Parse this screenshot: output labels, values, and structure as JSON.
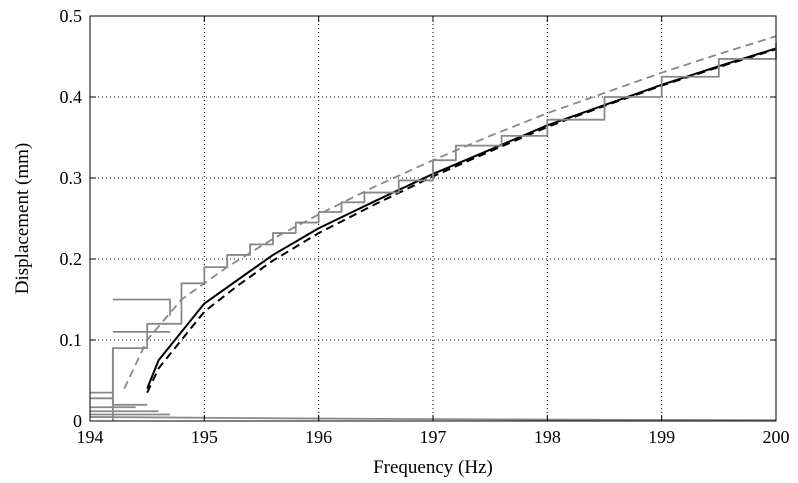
{
  "chart_data": {
    "type": "line",
    "title": "",
    "xlabel": "Frequency (Hz)",
    "ylabel": "Displacement (mm)",
    "xlim": [
      194,
      200
    ],
    "ylim": [
      0,
      0.5
    ],
    "x_ticks": [
      194,
      195,
      196,
      197,
      198,
      199,
      200
    ],
    "y_ticks": [
      0,
      0.1,
      0.2,
      0.3,
      0.4,
      0.5
    ],
    "x_tick_labels": [
      "194",
      "195",
      "196",
      "197",
      "198",
      "199",
      "200"
    ],
    "y_tick_labels": [
      "0",
      "0.1",
      "0.2",
      "0.3",
      "0.4",
      "0.5"
    ],
    "grid": true,
    "legend": false,
    "series": [
      {
        "style": "solid",
        "color": "#000000",
        "points": [
          [
            194.5,
            0.04
          ],
          [
            194.6,
            0.075
          ],
          [
            194.8,
            0.11
          ],
          [
            195.0,
            0.145
          ],
          [
            195.3,
            0.175
          ],
          [
            195.6,
            0.205
          ],
          [
            196.0,
            0.238
          ],
          [
            196.5,
            0.272
          ],
          [
            197.0,
            0.305
          ],
          [
            197.5,
            0.335
          ],
          [
            198.0,
            0.365
          ],
          [
            198.5,
            0.39
          ],
          [
            199.0,
            0.415
          ],
          [
            199.5,
            0.438
          ],
          [
            200.0,
            0.46
          ]
        ]
      },
      {
        "style": "dashed",
        "color": "#000000",
        "points": [
          [
            194.5,
            0.035
          ],
          [
            194.6,
            0.065
          ],
          [
            194.8,
            0.1
          ],
          [
            195.0,
            0.135
          ],
          [
            195.3,
            0.168
          ],
          [
            195.6,
            0.198
          ],
          [
            196.0,
            0.232
          ],
          [
            196.5,
            0.268
          ],
          [
            197.0,
            0.302
          ],
          [
            197.5,
            0.333
          ],
          [
            198.0,
            0.363
          ],
          [
            198.5,
            0.389
          ],
          [
            199.0,
            0.414
          ],
          [
            199.5,
            0.437
          ],
          [
            200.0,
            0.459
          ]
        ]
      },
      {
        "style": "dashed",
        "color": "#888888",
        "points": [
          [
            194.3,
            0.04
          ],
          [
            194.5,
            0.1
          ],
          [
            194.8,
            0.15
          ],
          [
            195.2,
            0.19
          ],
          [
            195.6,
            0.225
          ],
          [
            196.0,
            0.255
          ],
          [
            196.5,
            0.29
          ],
          [
            197.0,
            0.322
          ],
          [
            197.5,
            0.352
          ],
          [
            198.0,
            0.38
          ],
          [
            198.5,
            0.405
          ],
          [
            199.0,
            0.43
          ],
          [
            199.5,
            0.453
          ],
          [
            200.0,
            0.475
          ]
        ]
      },
      {
        "style": "steps",
        "color": "#888888",
        "points": [
          [
            194.2,
            0.0
          ],
          [
            194.2,
            0.09
          ],
          [
            194.5,
            0.09
          ],
          [
            194.5,
            0.12
          ],
          [
            194.8,
            0.12
          ],
          [
            194.8,
            0.17
          ],
          [
            195.0,
            0.17
          ],
          [
            195.0,
            0.19
          ],
          [
            195.2,
            0.19
          ],
          [
            195.2,
            0.205
          ],
          [
            195.4,
            0.205
          ],
          [
            195.4,
            0.218
          ],
          [
            195.6,
            0.218
          ],
          [
            195.6,
            0.232
          ],
          [
            195.8,
            0.232
          ],
          [
            195.8,
            0.245
          ],
          [
            196.0,
            0.245
          ],
          [
            196.0,
            0.258
          ],
          [
            196.2,
            0.258
          ],
          [
            196.2,
            0.27
          ],
          [
            196.4,
            0.27
          ],
          [
            196.4,
            0.282
          ],
          [
            196.7,
            0.282
          ],
          [
            196.7,
            0.297
          ],
          [
            197.0,
            0.297
          ],
          [
            197.0,
            0.322
          ],
          [
            197.2,
            0.322
          ],
          [
            197.2,
            0.34
          ],
          [
            197.6,
            0.34
          ],
          [
            197.6,
            0.352
          ],
          [
            198.0,
            0.352
          ],
          [
            198.0,
            0.372
          ],
          [
            198.5,
            0.372
          ],
          [
            198.5,
            0.4
          ],
          [
            199.0,
            0.4
          ],
          [
            199.0,
            0.425
          ],
          [
            199.5,
            0.425
          ],
          [
            199.5,
            0.447
          ],
          [
            200.0,
            0.447
          ],
          [
            200.0,
            0.467
          ]
        ]
      },
      {
        "style": "steps",
        "color": "#888888",
        "points": [
          [
            194.2,
            0.15
          ],
          [
            194.7,
            0.15
          ],
          [
            194.7,
            0.13
          ]
        ]
      },
      {
        "style": "steps",
        "color": "#888888",
        "points": [
          [
            194.2,
            0.11
          ],
          [
            194.7,
            0.11
          ]
        ]
      },
      {
        "style": "steps",
        "color": "#888888",
        "points": [
          [
            194.2,
            0.09
          ],
          [
            194.2,
            0.02
          ],
          [
            194.5,
            0.02
          ]
        ]
      },
      {
        "style": "steps",
        "color": "#888888",
        "points": [
          [
            194.0,
            0.035
          ],
          [
            194.2,
            0.035
          ]
        ]
      },
      {
        "style": "steps",
        "color": "#888888",
        "points": [
          [
            194.0,
            0.028
          ],
          [
            194.2,
            0.028
          ]
        ]
      },
      {
        "style": "steps",
        "color": "#888888",
        "points": [
          [
            194.0,
            0.017
          ],
          [
            194.4,
            0.017
          ]
        ]
      },
      {
        "style": "steps",
        "color": "#888888",
        "points": [
          [
            194.0,
            0.012
          ],
          [
            194.6,
            0.012
          ]
        ]
      },
      {
        "style": "steps",
        "color": "#888888",
        "points": [
          [
            194.0,
            0.008
          ],
          [
            194.7,
            0.008
          ]
        ]
      },
      {
        "style": "steps",
        "color": "#888888",
        "points": [
          [
            194.0,
            0.005
          ],
          [
            195.0,
            0.004
          ],
          [
            196.0,
            0.003
          ],
          [
            197.5,
            0.002
          ],
          [
            198.5,
            0.0015
          ],
          [
            200.0,
            0.001
          ]
        ]
      }
    ]
  }
}
